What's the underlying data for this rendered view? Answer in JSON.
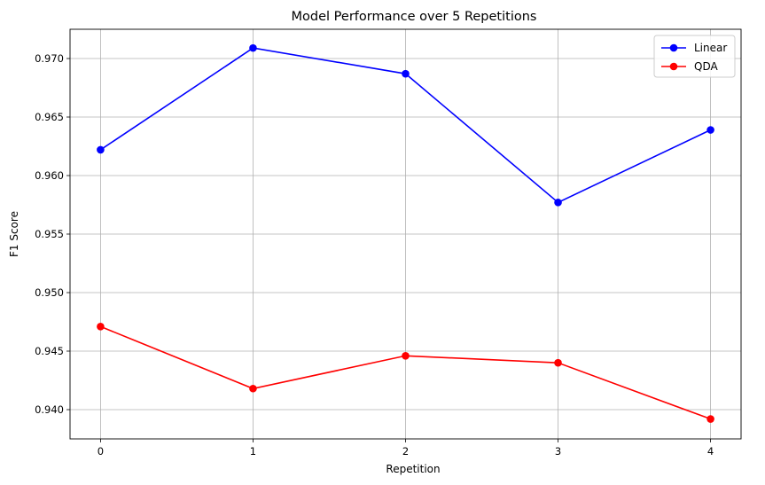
{
  "chart_data": {
    "type": "line",
    "title": "Model Performance over 5 Repetitions",
    "xlabel": "Repetition",
    "ylabel": "F1 Score",
    "x": [
      0,
      1,
      2,
      3,
      4
    ],
    "x_ticks": [
      "0",
      "1",
      "2",
      "3",
      "4"
    ],
    "y_ticks": [
      "0.940",
      "0.945",
      "0.950",
      "0.955",
      "0.960",
      "0.965",
      "0.970"
    ],
    "y_tick_values": [
      0.94,
      0.945,
      0.95,
      0.955,
      0.96,
      0.965,
      0.97
    ],
    "xlim": [
      -0.2,
      4.2
    ],
    "ylim": [
      0.9375,
      0.9725
    ],
    "grid": true,
    "legend_position": "top-right",
    "series": [
      {
        "name": "Linear",
        "color": "#0000ff",
        "marker": "circle",
        "values": [
          0.9622,
          0.9709,
          0.9687,
          0.9577,
          0.9639
        ]
      },
      {
        "name": "QDA",
        "color": "#ff0000",
        "marker": "circle",
        "values": [
          0.9471,
          0.9418,
          0.9446,
          0.944,
          0.9392
        ]
      }
    ]
  }
}
